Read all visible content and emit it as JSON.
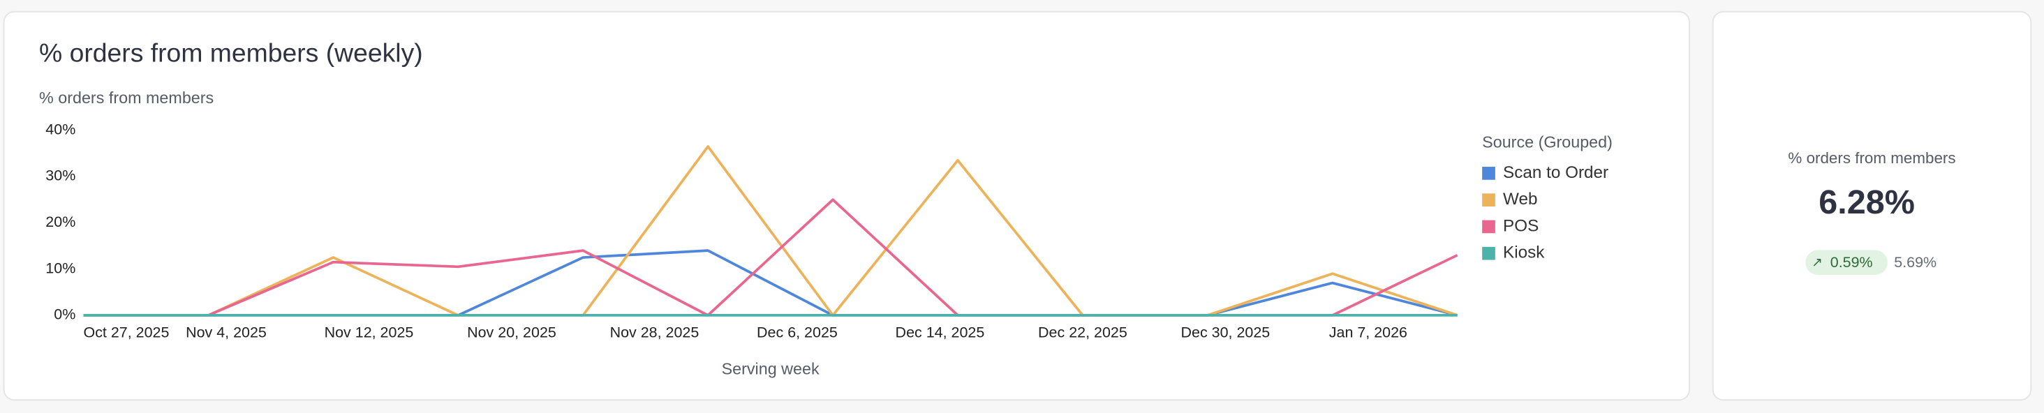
{
  "chart_data": {
    "type": "line",
    "title": "% orders from members (weekly)",
    "y_label": "% orders from members",
    "x_label": "Serving week",
    "legend_title": "Source (Grouped)",
    "x": [
      "2025-10-27",
      "2025-11-03",
      "2025-11-10",
      "2025-11-17",
      "2025-11-24",
      "2025-12-01",
      "2025-12-08",
      "2025-12-15",
      "2025-12-22",
      "2025-12-29",
      "2026-01-05",
      "2026-01-12"
    ],
    "xlim": [
      "2025-10-27",
      "2026-01-12"
    ],
    "xticks": [
      {
        "value": "2025-10-27",
        "label": "Oct 27, 2025"
      },
      {
        "value": "2025-11-04",
        "label": "Nov 4, 2025"
      },
      {
        "value": "2025-11-12",
        "label": "Nov 12, 2025"
      },
      {
        "value": "2025-11-20",
        "label": "Nov 20, 2025"
      },
      {
        "value": "2025-11-28",
        "label": "Nov 28, 2025"
      },
      {
        "value": "2025-12-06",
        "label": "Dec 6, 2025"
      },
      {
        "value": "2025-12-14",
        "label": "Dec 14, 2025"
      },
      {
        "value": "2025-12-22",
        "label": "Dec 22, 2025"
      },
      {
        "value": "2025-12-30",
        "label": "Dec 30, 2025"
      },
      {
        "value": "2026-01-07",
        "label": "Jan 7, 2026"
      }
    ],
    "ylim": [
      0,
      40
    ],
    "yticks": [
      {
        "value": 0,
        "label": "0%"
      },
      {
        "value": 10,
        "label": "10%"
      },
      {
        "value": 20,
        "label": "20%"
      },
      {
        "value": 30,
        "label": "30%"
      },
      {
        "value": 40,
        "label": "40%"
      }
    ],
    "series": [
      {
        "name": "Scan to Order",
        "color": "#4e86dc",
        "values": [
          0,
          0,
          0,
          0,
          12.5,
          14,
          0,
          0,
          0,
          0,
          7,
          0
        ]
      },
      {
        "name": "Web",
        "color": "#ecb35a",
        "values": [
          0,
          0,
          12.5,
          0,
          0,
          36.5,
          0,
          33.5,
          0,
          0,
          9,
          0
        ]
      },
      {
        "name": "POS",
        "color": "#e8668f",
        "values": [
          0,
          0,
          11.5,
          10.5,
          14,
          0,
          25,
          0,
          0,
          0,
          0,
          13
        ]
      },
      {
        "name": "Kiosk",
        "color": "#4bb3a9",
        "values": [
          0,
          0,
          0,
          0,
          0,
          0,
          0,
          0,
          0,
          0,
          0,
          0
        ]
      }
    ]
  },
  "kpi": {
    "label": "% orders from members",
    "value": "6.28%",
    "change": "0.59%",
    "previous": "5.69%"
  }
}
